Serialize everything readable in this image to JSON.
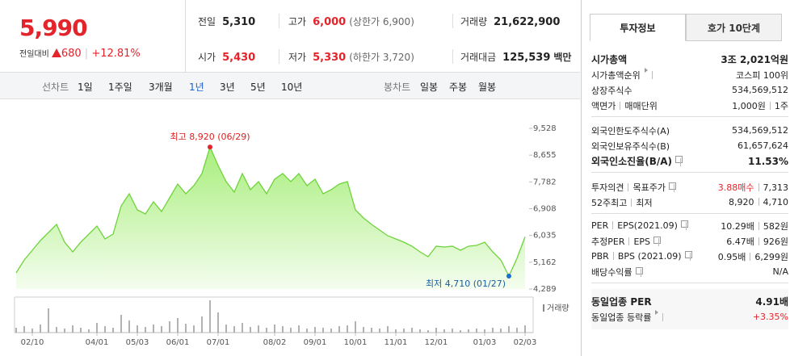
{
  "header": {
    "price": "5,990",
    "change_label": "전일대비",
    "change": "680",
    "change_rate": "+12.81%",
    "info": [
      {
        "label": "전일",
        "value": "5,310"
      },
      {
        "label": "고가",
        "value": "6,000",
        "note": "(상한가 6,900)",
        "color": "#e4242b"
      },
      {
        "label": "거래량",
        "value": "21,622,900"
      },
      {
        "label": "시가",
        "value": "5,430",
        "color": "#e4242b"
      },
      {
        "label": "저가",
        "value": "5,330",
        "note": "(하한가 3,720)",
        "color": "#e4242b"
      },
      {
        "label": "거래대금",
        "value": "125,539",
        "unit": "백만"
      }
    ]
  },
  "toolbar": {
    "line_label": "선차트",
    "periods": [
      "1일",
      "1주일",
      "3개월",
      "1년",
      "3년",
      "5년",
      "10년"
    ],
    "active": "1년",
    "candle_label": "봉차트",
    "candles": [
      "일봉",
      "주봉",
      "월봉"
    ]
  },
  "chart_data": {
    "type": "line",
    "color": "#6fd33c",
    "categories": [
      null,
      null,
      "02/10",
      null,
      null,
      null,
      null,
      null,
      null,
      null,
      "04/01",
      null,
      null,
      null,
      null,
      "05/03",
      null,
      null,
      null,
      null,
      "06/01",
      null,
      null,
      null,
      null,
      "07/01",
      null,
      null,
      null,
      null,
      null,
      null,
      "08/02",
      null,
      null,
      null,
      null,
      "09/01",
      null,
      null,
      null,
      null,
      "10/01",
      null,
      null,
      null,
      null,
      "11/01",
      null,
      null,
      null,
      null,
      "12/01",
      null,
      null,
      null,
      null,
      null,
      "01/03",
      null,
      null,
      null,
      null,
      "02/03"
    ],
    "values": [
      4815,
      5237,
      5553,
      5869,
      6132,
      6395,
      5816,
      5500,
      5816,
      6079,
      6343,
      5922,
      6079,
      7001,
      7396,
      6869,
      6738,
      7133,
      6817,
      7264,
      7712,
      7396,
      7659,
      8054,
      8920,
      8317,
      7791,
      7449,
      8054,
      7528,
      7791,
      7396,
      7870,
      8054,
      7791,
      8054,
      7659,
      7870,
      7396,
      7528,
      7712,
      7791,
      6869,
      6606,
      6395,
      6211,
      6027,
      5922,
      5816,
      5685,
      5500,
      5342,
      5685,
      5659,
      5685,
      5553,
      5685,
      5711,
      5816,
      5500,
      5237,
      4710,
      5290,
      5990
    ],
    "ylim": [
      4289,
      9528
    ],
    "yticks": [
      {
        "value": 4289,
        "label": "4,289"
      },
      {
        "value": 5162,
        "label": "5,162"
      },
      {
        "value": 6035,
        "label": "6,035"
      },
      {
        "value": 6908,
        "label": "6,908"
      },
      {
        "value": 7782,
        "label": "7,782"
      },
      {
        "value": 8655,
        "label": "8,655"
      },
      {
        "value": 9528,
        "label": "9,528"
      }
    ],
    "high_label": "최고 8,920 (06/29)",
    "low_label": "최저 4,710 (01/27)",
    "volume": {
      "name": "거래량",
      "color": "#999999",
      "lim": [
        0,
        40
      ],
      "values": [
        6,
        8,
        5,
        10,
        30,
        7,
        5,
        9,
        6,
        4,
        12,
        8,
        6,
        22,
        15,
        9,
        7,
        10,
        8,
        14,
        18,
        11,
        9,
        20,
        40,
        25,
        10,
        8,
        12,
        7,
        9,
        6,
        10,
        8,
        6,
        9,
        5,
        7,
        6,
        5,
        8,
        9,
        14,
        7,
        6,
        5,
        8,
        4,
        5,
        6,
        4,
        3,
        6,
        4,
        5,
        3,
        4,
        5,
        4,
        6,
        5,
        8,
        6,
        9
      ]
    }
  },
  "panel": {
    "tabs": [
      "투자정보",
      "호가 10단계"
    ],
    "sections": [
      [
        {
          "label": [
            "시가총액"
          ],
          "value": [
            "3조 2,021억원"
          ],
          "bold": true
        },
        {
          "label": [
            "시가총액순위"
          ],
          "value": [
            "코스피 100위"
          ],
          "arrow": true
        },
        {
          "label": [
            "상장주식수"
          ],
          "value": [
            "534,569,512"
          ]
        },
        {
          "label": [
            "액면가",
            "매매단위"
          ],
          "value": [
            "1,000원",
            "1주"
          ]
        }
      ],
      [
        {
          "label": [
            "외국인한도주식수(A)"
          ],
          "value": [
            "534,569,512"
          ]
        },
        {
          "label": [
            "외국인보유주식수(B)"
          ],
          "value": [
            "61,657,624"
          ]
        },
        {
          "label": [
            "외국인소진율(B/A)"
          ],
          "value": [
            "11.53%"
          ],
          "bold": true,
          "help": true
        }
      ],
      [
        {
          "label": [
            "투자의견",
            "목표주가"
          ],
          "value": [
            "3.88매수",
            "7,313"
          ],
          "help": true,
          "color": "#e4242b"
        },
        {
          "label": [
            "52주최고",
            "최저"
          ],
          "value": [
            "8,920",
            "4,710"
          ]
        }
      ],
      [
        {
          "label": [
            "PER",
            "EPS(2021.09)"
          ],
          "value": [
            "10.29배",
            "582원"
          ],
          "help": true
        },
        {
          "label": [
            "추정PER",
            "EPS"
          ],
          "value": [
            "6.47배",
            "926원"
          ],
          "help": true
        },
        {
          "label": [
            "PBR",
            "BPS (2021.09)"
          ],
          "value": [
            "0.95배",
            "6,299원"
          ],
          "help": true
        },
        {
          "label": [
            "배당수익률"
          ],
          "value": [
            "N/A"
          ],
          "help": true
        }
      ],
      [
        {
          "label": [
            "동일업종 PER"
          ],
          "value": [
            "4.91배"
          ],
          "bold": true
        },
        {
          "label": [
            "동일업종 등락률"
          ],
          "value": [
            "+3.35%"
          ],
          "arrow": true,
          "color": "#e4242b"
        }
      ]
    ]
  }
}
